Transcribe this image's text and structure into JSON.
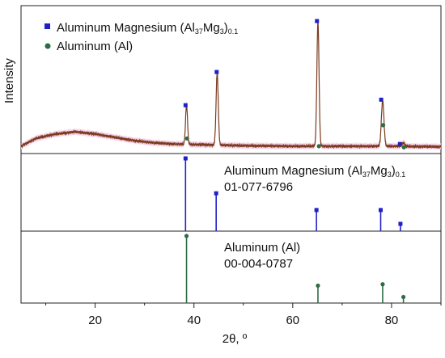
{
  "chart_data": {
    "type": "line",
    "xlabel": "2θ, º",
    "ylabel": "Intensity",
    "xlim": [
      5,
      90
    ],
    "x_ticks": [
      "20",
      "40",
      "60",
      "80"
    ],
    "legend": {
      "placement": "top-left",
      "entries": [
        {
          "base": "Aluminum Magnesium (Al",
          "sub1": "37",
          "mid": "Mg",
          "sub2": "3",
          "close": ")",
          "sub3": "0.1",
          "marker": "square",
          "color": "#2020c8"
        },
        {
          "base": "Aluminum (Al)",
          "marker": "circle",
          "color": "#2e6b46"
        }
      ]
    },
    "measured": {
      "color": "#7a3b1e",
      "band_color": "#f2c6de",
      "baseline": [
        [
          5,
          3
        ],
        [
          8,
          10
        ],
        [
          12,
          14
        ],
        [
          16,
          16
        ],
        [
          20,
          14
        ],
        [
          24,
          11
        ],
        [
          28,
          8
        ],
        [
          32,
          6
        ],
        [
          36,
          5
        ],
        [
          40,
          4.5
        ],
        [
          50,
          3.5
        ],
        [
          60,
          3
        ],
        [
          70,
          3
        ],
        [
          80,
          3
        ],
        [
          90,
          2.5
        ]
      ],
      "peaks": [
        {
          "x": 38.5,
          "h": 36,
          "w": 0.2
        },
        {
          "x": 44.7,
          "h": 65,
          "w": 0.22
        },
        {
          "x": 65.1,
          "h": 112,
          "w": 0.22
        },
        {
          "x": 78.2,
          "h": 41,
          "w": 0.26
        },
        {
          "x": 82.4,
          "h": 3,
          "w": 0.3
        }
      ],
      "mg_markers": [
        {
          "x": 38.3,
          "y": 40
        },
        {
          "x": 44.6,
          "y": 70
        },
        {
          "x": 64.9,
          "y": 116
        },
        {
          "x": 77.9,
          "y": 45
        },
        {
          "x": 81.7,
          "y": 5
        }
      ],
      "al_markers": [
        {
          "x": 38.6,
          "y": 10
        },
        {
          "x": 65.3,
          "y": 3
        },
        {
          "x": 78.3,
          "y": 22
        },
        {
          "x": 82.5,
          "y": 2
        }
      ]
    },
    "reference_mg": {
      "name": "Aluminum Magnesium (Al",
      "sub1": "37",
      "mid": "Mg",
      "sub2": "3",
      "close": ")",
      "sub3": "0.1",
      "code": "01-077-6796",
      "color": "#2020c8",
      "ymax": 100,
      "sticks": [
        {
          "x": 38.3,
          "y": 100
        },
        {
          "x": 44.5,
          "y": 52
        },
        {
          "x": 64.8,
          "y": 29
        },
        {
          "x": 77.8,
          "y": 29
        },
        {
          "x": 81.8,
          "y": 10
        }
      ]
    },
    "reference_al": {
      "name": "Aluminum (Al)",
      "code": "00-004-0787",
      "color": "#2e6b46",
      "ymax": 100,
      "sticks": [
        {
          "x": 38.5,
          "y": 100
        },
        {
          "x": 65.1,
          "y": 26
        },
        {
          "x": 78.2,
          "y": 28
        },
        {
          "x": 82.4,
          "y": 9
        }
      ]
    }
  }
}
